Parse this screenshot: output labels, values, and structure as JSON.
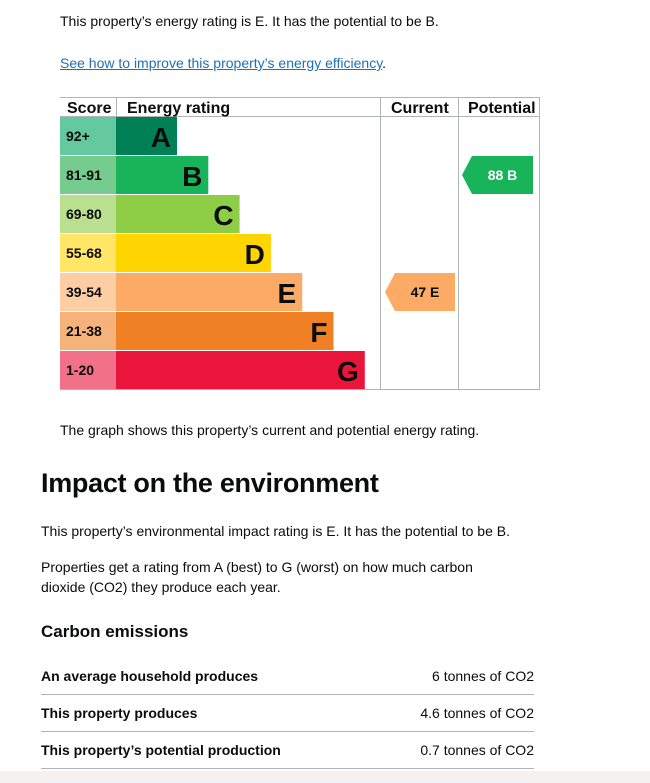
{
  "intro": {
    "rating_text": "This property’s energy rating is E. It has the potential to be B.",
    "improve_link": "See how to improve this property’s energy efficiency",
    "improve_link_suffix": "."
  },
  "epc_chart": {
    "headers": {
      "score": "Score",
      "energy_rating": "Energy rating",
      "current": "Current",
      "potential": "Potential"
    },
    "bands": [
      {
        "score": "92+",
        "letter": "A",
        "color": "#008054",
        "score_bg": "#65c9a0"
      },
      {
        "score": "81-91",
        "letter": "B",
        "color": "#19b459",
        "score_bg": "#75cc8e"
      },
      {
        "score": "69-80",
        "letter": "C",
        "color": "#8dce46",
        "score_bg": "#b9e08f"
      },
      {
        "score": "55-68",
        "letter": "D",
        "color": "#ffd500",
        "score_bg": "#ffe666"
      },
      {
        "score": "39-54",
        "letter": "E",
        "color": "#fcaa65",
        "score_bg": "#fdcda3"
      },
      {
        "score": "21-38",
        "letter": "F",
        "color": "#ef8023",
        "score_bg": "#f5b27b"
      },
      {
        "score": "1-20",
        "letter": "G",
        "color": "#e9153b",
        "score_bg": "#f27189"
      }
    ],
    "current": {
      "value": "47",
      "letter": "E",
      "label": "47 E",
      "band_index": 4,
      "color": "#fcaa65"
    },
    "potential": {
      "value": "88",
      "letter": "B",
      "label": "88 B",
      "band_index": 1,
      "color": "#19b459"
    }
  },
  "caption": "The graph shows this property’s current and potential energy rating.",
  "impact": {
    "heading": "Impact on the environment",
    "rating_text": "This property’s environmental impact rating is E. It has the potential to be B.",
    "explain_line1": "Properties get a rating from A (best) to G (worst) on how much carbon",
    "explain_line2": "dioxide (CO2) they produce each year."
  },
  "carbon": {
    "heading": "Carbon emissions",
    "rows": [
      {
        "label": "An average household produces",
        "value": "6 tonnes of CO2"
      },
      {
        "label": "This property produces",
        "value": "4.6 tonnes of CO2"
      },
      {
        "label": "This property’s potential production",
        "value": "0.7 tonnes of CO2"
      }
    ]
  }
}
